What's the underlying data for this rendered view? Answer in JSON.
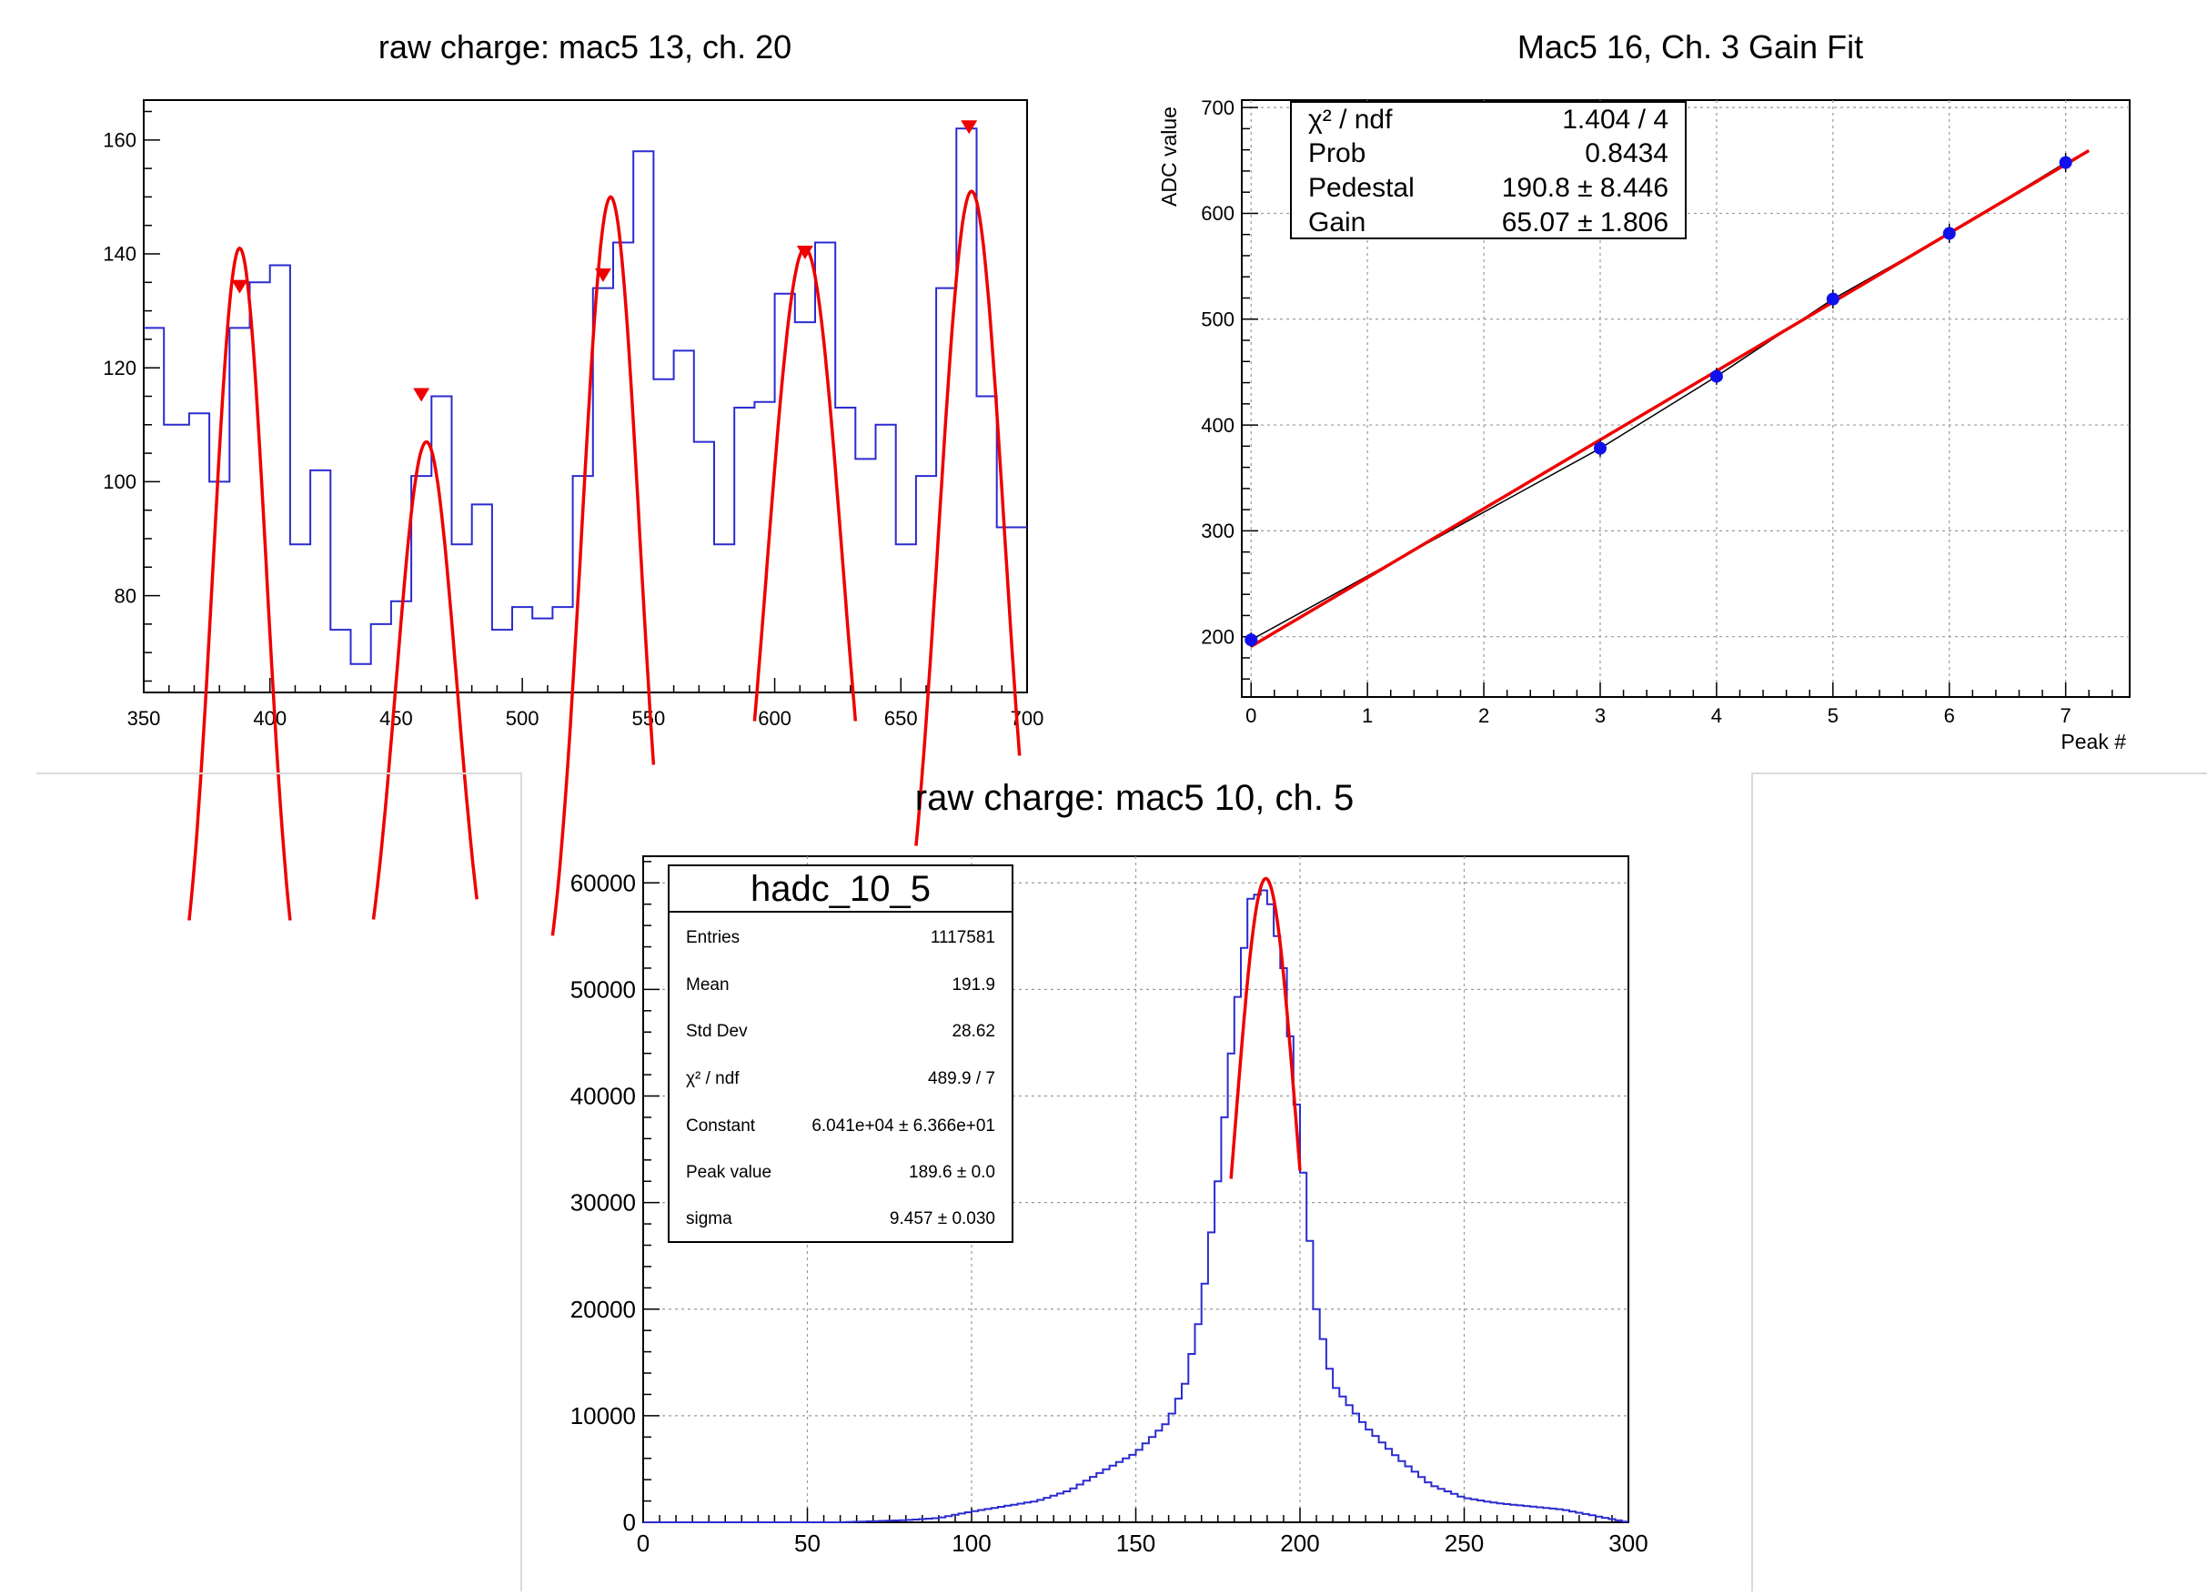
{
  "colors": {
    "histogram": "#2b2bd0",
    "fit": "#ee0000",
    "marker": "#ee0000",
    "points": "#1010ee",
    "grid": "#9a9a9a",
    "axis": "#000000"
  },
  "chart_data": [
    {
      "type": "histogram",
      "title": "raw charge: mac5 13, ch. 20",
      "xlim": [
        350,
        700
      ],
      "ylim": [
        63,
        167
      ],
      "xticks": [
        350,
        400,
        450,
        500,
        550,
        600,
        650,
        700
      ],
      "yticks": [
        80,
        100,
        120,
        140,
        160
      ],
      "bin_edges": [
        350,
        358,
        368,
        376,
        384,
        392,
        400,
        408,
        416,
        424,
        432,
        440,
        448,
        456,
        464,
        472,
        480,
        488,
        496,
        504,
        512,
        520,
        528,
        536,
        544,
        552,
        560,
        568,
        576,
        584,
        592,
        600,
        608,
        616,
        624,
        632,
        640,
        648,
        656,
        664,
        672,
        680,
        688,
        696,
        704
      ],
      "counts": [
        127,
        110,
        112,
        100,
        127,
        135,
        138,
        89,
        102,
        74,
        68,
        75,
        79,
        101,
        115,
        89,
        96,
        74,
        78,
        76,
        78,
        101,
        134,
        142,
        158,
        118,
        123,
        107,
        89,
        113,
        114,
        133,
        128,
        142,
        113,
        104,
        110,
        89,
        101,
        134,
        162,
        115,
        92,
        92
      ],
      "peaks": [
        {
          "x": 388,
          "y": 134
        },
        {
          "x": 460,
          "y": 115
        },
        {
          "x": 532,
          "y": 136
        },
        {
          "x": 612,
          "y": 140
        },
        {
          "x": 677,
          "y": 162
        }
      ],
      "fits": [
        {
          "mean": 388,
          "amp": 141,
          "sigma": 10.5,
          "xmin": 368,
          "xmax": 408
        },
        {
          "mean": 462,
          "amp": 107,
          "sigma": 12,
          "xmin": 441,
          "xmax": 482
        },
        {
          "mean": 535,
          "amp": 150,
          "sigma": 11.5,
          "xmin": 512,
          "xmax": 552
        },
        {
          "mean": 612,
          "amp": 141,
          "sigma": 15,
          "xmin": 592,
          "xmax": 632
        },
        {
          "mean": 678,
          "amp": 151,
          "sigma": 13,
          "xmin": 656,
          "xmax": 697
        }
      ]
    },
    {
      "type": "scatter",
      "title": "Mac5 16, Ch. 3 Gain Fit",
      "xlabel": "Peak #",
      "ylabel": "ADC value",
      "xlim": [
        -0.08,
        7.55
      ],
      "ylim": [
        143,
        707
      ],
      "xticks": [
        0,
        1,
        2,
        3,
        4,
        5,
        6,
        7
      ],
      "yticks": [
        200,
        300,
        400,
        500,
        600,
        700
      ],
      "points": [
        {
          "x": 0,
          "y": 197,
          "err": 7
        },
        {
          "x": 3,
          "y": 378,
          "err": 8
        },
        {
          "x": 4,
          "y": 446,
          "err": 8
        },
        {
          "x": 5,
          "y": 519,
          "err": 9
        },
        {
          "x": 6,
          "y": 581,
          "err": 9
        },
        {
          "x": 7,
          "y": 648,
          "err": 9
        }
      ],
      "fit": {
        "pedestal": 190.8,
        "gain": 65.07,
        "xmin": 0,
        "xmax": 7.2
      },
      "stats": {
        "rows": [
          {
            "label": "χ² / ndf",
            "value": "1.404 / 4"
          },
          {
            "label": "Prob",
            "value": "0.8434"
          },
          {
            "label": "Pedestal",
            "value": "190.8 ± 8.446"
          },
          {
            "label": "Gain",
            "value": "65.07 ± 1.806"
          }
        ]
      }
    },
    {
      "type": "histogram",
      "title": "raw charge: mac5 10, ch. 5",
      "xlim": [
        0,
        300
      ],
      "ylim": [
        0,
        62500
      ],
      "xticks": [
        0,
        50,
        100,
        150,
        200,
        250,
        300
      ],
      "yticks": [
        0,
        10000,
        20000,
        30000,
        40000,
        50000,
        60000
      ],
      "profile": {
        "x": [
          0,
          60,
          80,
          90,
          100,
          110,
          120,
          130,
          140,
          150,
          160,
          165,
          170,
          175,
          180,
          185,
          190,
          195,
          200,
          205,
          210,
          215,
          220,
          230,
          240,
          250,
          260,
          270,
          280,
          290,
          300
        ],
        "y": [
          0,
          0,
          200,
          400,
          1000,
          1500,
          2000,
          3000,
          4800,
          6500,
          9500,
          13000,
          20000,
          32000,
          47000,
          58500,
          59500,
          52000,
          36000,
          20000,
          13000,
          11000,
          9000,
          6000,
          3500,
          2300,
          1800,
          1500,
          1200,
          600,
          0
        ]
      },
      "fit": {
        "constant": 60410,
        "mean": 189.6,
        "sigma": 9.457,
        "xmin": 179,
        "xmax": 200
      },
      "stats": {
        "name": "hadc_10_5",
        "rows": [
          {
            "label": "Entries",
            "value": "1117581"
          },
          {
            "label": "Mean",
            "value": "191.9"
          },
          {
            "label": "Std Dev",
            "value": "28.62"
          },
          {
            "label": "χ² / ndf",
            "value": "489.9 / 7"
          },
          {
            "label": "Constant",
            "value": "6.041e+04 ± 6.366e+01"
          },
          {
            "label": "Peak value",
            "value": "189.6 ± 0.0"
          },
          {
            "label": "sigma",
            "value": "9.457 ± 0.030"
          }
        ]
      }
    }
  ]
}
